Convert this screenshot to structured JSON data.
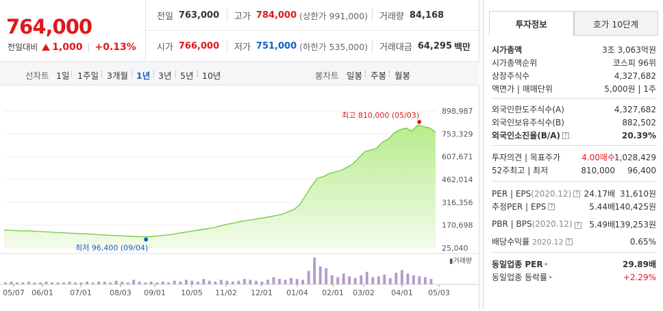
{
  "price": {
    "current": "764,000",
    "change_label": "전일대비",
    "change_value": "1,000",
    "change_pct": "+0.13%"
  },
  "stats": {
    "prev_label": "전일",
    "prev": "763,000",
    "high_label": "고가",
    "high": "784,000",
    "upper_limit": "(상한가 991,000)",
    "volume_label": "거래량",
    "volume": "84,168",
    "open_label": "시가",
    "open": "766,000",
    "low_label": "저가",
    "low": "751,000",
    "lower_limit": "(하한가 535,000)",
    "amount_label": "거래대금",
    "amount": "64,295",
    "amount_unit": "백만"
  },
  "periods": {
    "line_label": "선차트",
    "line_items": [
      "1일",
      "1주일",
      "3개월",
      "1년",
      "3년",
      "5년",
      "10년"
    ],
    "active": "1년",
    "candle_label": "봉차트",
    "candle_items": [
      "일봉",
      "주봉",
      "월봉"
    ]
  },
  "chart_data": {
    "type": "area",
    "y_ticks": [
      "898,987",
      "753,329",
      "607,671",
      "462,014",
      "316,356",
      "170,698",
      "25,040"
    ],
    "ylim": [
      25040,
      898987
    ],
    "x_ticks": [
      "05/07",
      "06/01",
      "07/01",
      "08/03",
      "09/01",
      "10/05",
      "11/02",
      "12/01",
      "01/04",
      "02/01",
      "03/02",
      "04/01",
      "05/03"
    ],
    "max_label": "최고 810,000 (05/03)",
    "min_label": "최저 96,400 (09/04)",
    "max_value": 810000,
    "min_value": 96400,
    "volume_label": "거래량",
    "values": [
      140000,
      138000,
      136000,
      134000,
      135000,
      132000,
      130000,
      128000,
      126000,
      124000,
      122000,
      120000,
      118000,
      116000,
      115000,
      113000,
      110000,
      108000,
      106000,
      104000,
      102000,
      100000,
      98000,
      97000,
      96400,
      98000,
      102000,
      106000,
      110000,
      116000,
      122000,
      128000,
      134000,
      140000,
      146000,
      152000,
      160000,
      170000,
      178000,
      186000,
      194000,
      200000,
      206000,
      212000,
      218000,
      225000,
      232000,
      240000,
      255000,
      270000,
      300000,
      360000,
      420000,
      470000,
      480000,
      500000,
      510000,
      520000,
      540000,
      560000,
      600000,
      640000,
      650000,
      660000,
      700000,
      720000,
      760000,
      780000,
      790000,
      770000,
      810000,
      800000,
      790000,
      764000
    ],
    "volumes": [
      2,
      3,
      2,
      2,
      3,
      2,
      2,
      3,
      2,
      2,
      2,
      3,
      2,
      2,
      3,
      2,
      3,
      3,
      2,
      4,
      3,
      2,
      5,
      3,
      2,
      3,
      2,
      3,
      2,
      4,
      3,
      5,
      4,
      3,
      6,
      4,
      3,
      5,
      4,
      3,
      4,
      6,
      5,
      4,
      3,
      5,
      8,
      6,
      5,
      7,
      6,
      5,
      15,
      30,
      20,
      18,
      10,
      8,
      12,
      9,
      7,
      10,
      14,
      8,
      9,
      11,
      7,
      13,
      16,
      12,
      10,
      9,
      8,
      6
    ]
  },
  "tabs": [
    "투자정보",
    "호가 10단계"
  ],
  "info": {
    "market_cap_label": "시가총액",
    "market_cap": "3조 3,063억원",
    "rank_label": "시가총액순위",
    "rank": "코스피 96위",
    "shares_label": "상장주식수",
    "shares": "4,327,682",
    "face_label": "액면가 | 매매단위",
    "face": "5,000원 | 1주",
    "foreign_limit_label": "외국인한도주식수(A)",
    "foreign_limit": "4,327,682",
    "foreign_hold_label": "외국인보유주식수(B)",
    "foreign_hold": "882,502",
    "foreign_rate_label": "외국인소진율(B/A)",
    "foreign_rate": "20.39%",
    "opinion_label": "투자의견 | 목표주가",
    "opinion": "4.00매수",
    "target": "1,028,429",
    "week52_label": "52주최고 | 최저",
    "week52_high": "810,000",
    "week52_low": "96,400",
    "per_label": "PER | EPS",
    "per_year": "(2020.12)",
    "per": "24.17배",
    "eps": "31,610원",
    "est_per_label": "추정PER | EPS",
    "est_per": "5.44배",
    "est_eps": "140,425원",
    "pbr_label": "PBR | BPS",
    "pbr_year": "(2020.12)",
    "pbr": "5.49배",
    "bps": "139,253원",
    "dividend_label": "배당수익률",
    "dividend_year": "2020.12",
    "dividend": "0.65%",
    "sector_per_label": "동일업종 PER",
    "sector_per": "29.89배",
    "sector_rate_label": "동일업종 등락률",
    "sector_rate": "+2.29%"
  }
}
